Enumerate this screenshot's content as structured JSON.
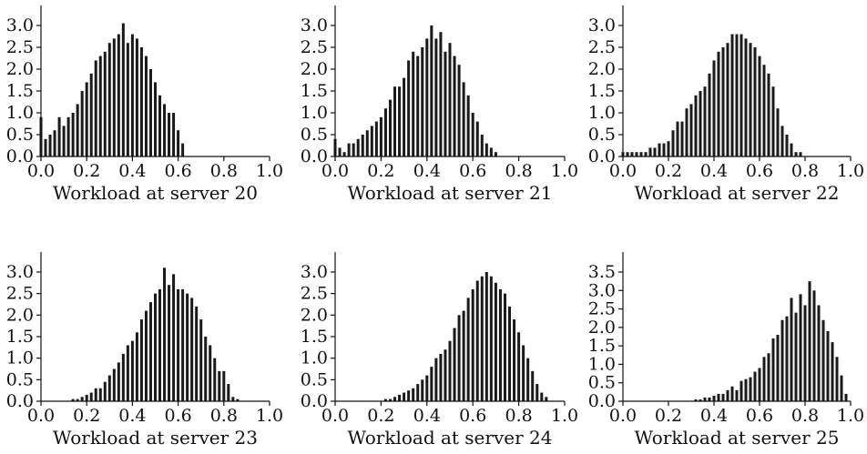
{
  "chart_data": [
    {
      "type": "bar",
      "xlabel": "Workload at server 20",
      "xlim": [
        0.0,
        1.0
      ],
      "ylim": [
        0.0,
        3.0
      ],
      "xticks": [
        "0.0",
        "0.2",
        "0.4",
        "0.6",
        "0.8",
        "1.0"
      ],
      "yticks": [
        "0.0",
        "0.5",
        "1.0",
        "1.5",
        "2.0",
        "2.5",
        "3.0"
      ],
      "x": [
        0.0,
        0.02,
        0.04,
        0.06,
        0.08,
        0.1,
        0.12,
        0.14,
        0.16,
        0.18,
        0.2,
        0.22,
        0.24,
        0.26,
        0.28,
        0.3,
        0.32,
        0.34,
        0.36,
        0.38,
        0.4,
        0.42,
        0.44,
        0.46,
        0.48,
        0.5,
        0.52,
        0.54,
        0.56,
        0.58,
        0.6,
        0.62
      ],
      "values": [
        0.9,
        0.4,
        0.5,
        0.6,
        0.9,
        0.7,
        0.9,
        1.0,
        1.2,
        1.5,
        1.7,
        1.9,
        2.2,
        2.3,
        2.4,
        2.6,
        2.7,
        2.8,
        3.05,
        2.6,
        2.8,
        2.7,
        2.5,
        2.3,
        2.0,
        1.7,
        1.4,
        1.2,
        1.0,
        1.0,
        0.6,
        0.3
      ]
    },
    {
      "type": "bar",
      "xlabel": "Workload at server 21",
      "xlim": [
        0.0,
        1.0
      ],
      "ylim": [
        0.0,
        3.0
      ],
      "xticks": [
        "0.0",
        "0.2",
        "0.4",
        "0.6",
        "0.8",
        "1.0"
      ],
      "yticks": [
        "0.0",
        "0.5",
        "1.0",
        "1.5",
        "2.0",
        "2.5",
        "3.0"
      ],
      "x": [
        0.0,
        0.02,
        0.04,
        0.06,
        0.08,
        0.1,
        0.12,
        0.14,
        0.16,
        0.18,
        0.2,
        0.22,
        0.24,
        0.26,
        0.28,
        0.3,
        0.32,
        0.34,
        0.36,
        0.38,
        0.4,
        0.42,
        0.44,
        0.46,
        0.48,
        0.5,
        0.52,
        0.54,
        0.56,
        0.58,
        0.6,
        0.62,
        0.64,
        0.66,
        0.68,
        0.7
      ],
      "values": [
        0.4,
        0.2,
        0.1,
        0.3,
        0.3,
        0.4,
        0.5,
        0.6,
        0.7,
        0.8,
        0.9,
        1.1,
        1.3,
        1.6,
        1.6,
        1.8,
        2.2,
        2.4,
        2.3,
        2.5,
        2.7,
        3.0,
        2.7,
        2.85,
        2.4,
        2.6,
        2.3,
        2.1,
        1.7,
        1.4,
        1.0,
        0.8,
        0.5,
        0.3,
        0.2,
        0.1
      ]
    },
    {
      "type": "bar",
      "xlabel": "Workload at server 22",
      "xlim": [
        0.0,
        1.0
      ],
      "ylim": [
        0.0,
        3.0
      ],
      "xticks": [
        "0.0",
        "0.2",
        "0.4",
        "0.6",
        "0.8",
        "1.0"
      ],
      "yticks": [
        "0.0",
        "0.5",
        "1.0",
        "1.5",
        "2.0",
        "2.5",
        "3.0"
      ],
      "x": [
        0.0,
        0.02,
        0.04,
        0.06,
        0.08,
        0.1,
        0.12,
        0.14,
        0.16,
        0.18,
        0.2,
        0.22,
        0.24,
        0.26,
        0.28,
        0.3,
        0.32,
        0.34,
        0.36,
        0.38,
        0.4,
        0.42,
        0.44,
        0.46,
        0.48,
        0.5,
        0.52,
        0.54,
        0.56,
        0.58,
        0.6,
        0.62,
        0.64,
        0.66,
        0.68,
        0.7,
        0.72,
        0.74,
        0.76,
        0.78
      ],
      "values": [
        0.1,
        0.1,
        0.1,
        0.1,
        0.1,
        0.1,
        0.2,
        0.2,
        0.3,
        0.3,
        0.35,
        0.6,
        0.8,
        0.8,
        1.1,
        1.2,
        1.4,
        1.5,
        1.6,
        1.9,
        2.2,
        2.4,
        2.5,
        2.6,
        2.8,
        2.8,
        2.8,
        2.7,
        2.6,
        2.5,
        2.3,
        2.1,
        1.9,
        1.6,
        1.1,
        0.7,
        0.5,
        0.3,
        0.1,
        0.1
      ]
    },
    {
      "type": "bar",
      "xlabel": "Workload at server 23",
      "xlim": [
        0.0,
        1.0
      ],
      "ylim": [
        0.0,
        3.0
      ],
      "xticks": [
        "0.0",
        "0.2",
        "0.4",
        "0.6",
        "0.8",
        "1.0"
      ],
      "yticks": [
        "0.0",
        "0.5",
        "1.0",
        "1.5",
        "2.0",
        "2.5",
        "3.0"
      ],
      "x": [
        0.14,
        0.16,
        0.18,
        0.2,
        0.22,
        0.24,
        0.26,
        0.28,
        0.3,
        0.32,
        0.34,
        0.36,
        0.38,
        0.4,
        0.42,
        0.44,
        0.46,
        0.48,
        0.5,
        0.52,
        0.54,
        0.56,
        0.58,
        0.6,
        0.62,
        0.64,
        0.66,
        0.68,
        0.7,
        0.72,
        0.74,
        0.76,
        0.78,
        0.8,
        0.82,
        0.84,
        0.86
      ],
      "values": [
        0.05,
        0.05,
        0.1,
        0.15,
        0.2,
        0.3,
        0.3,
        0.45,
        0.6,
        0.75,
        0.9,
        1.1,
        1.3,
        1.4,
        1.6,
        1.9,
        2.1,
        2.3,
        2.5,
        2.6,
        3.1,
        2.7,
        2.95,
        2.6,
        2.6,
        2.5,
        2.4,
        2.2,
        1.9,
        1.5,
        1.3,
        1.0,
        0.7,
        0.7,
        0.4,
        0.1,
        0.05
      ]
    },
    {
      "type": "bar",
      "xlabel": "Workload at server 24",
      "xlim": [
        0.0,
        1.0
      ],
      "ylim": [
        0.0,
        3.0
      ],
      "xticks": [
        "0.0",
        "0.2",
        "0.4",
        "0.6",
        "0.8",
        "1.0"
      ],
      "yticks": [
        "0.0",
        "0.5",
        "1.0",
        "1.5",
        "2.0",
        "2.5",
        "3.0"
      ],
      "x": [
        0.22,
        0.24,
        0.26,
        0.28,
        0.3,
        0.32,
        0.34,
        0.36,
        0.38,
        0.4,
        0.42,
        0.44,
        0.46,
        0.48,
        0.5,
        0.52,
        0.54,
        0.56,
        0.58,
        0.6,
        0.62,
        0.64,
        0.66,
        0.68,
        0.7,
        0.72,
        0.74,
        0.76,
        0.78,
        0.8,
        0.82,
        0.84,
        0.86,
        0.88,
        0.9,
        0.92
      ],
      "values": [
        0.05,
        0.05,
        0.1,
        0.15,
        0.2,
        0.25,
        0.3,
        0.4,
        0.5,
        0.6,
        0.8,
        1.0,
        1.1,
        1.2,
        1.4,
        1.7,
        2.0,
        2.1,
        2.4,
        2.6,
        2.8,
        2.9,
        3.0,
        2.9,
        2.75,
        2.6,
        2.5,
        2.2,
        1.9,
        1.6,
        1.3,
        1.0,
        0.7,
        0.4,
        0.2,
        0.1
      ]
    },
    {
      "type": "bar",
      "xlabel": "Workload at server 25",
      "xlim": [
        0.0,
        1.0
      ],
      "ylim": [
        0.0,
        3.5
      ],
      "xticks": [
        "0.0",
        "0.2",
        "0.4",
        "0.6",
        "0.8",
        "1.0"
      ],
      "yticks": [
        "0.0",
        "0.5",
        "1.0",
        "1.5",
        "2.0",
        "2.5",
        "3.0",
        "3.5"
      ],
      "x": [
        0.32,
        0.34,
        0.36,
        0.38,
        0.4,
        0.42,
        0.44,
        0.46,
        0.48,
        0.5,
        0.52,
        0.54,
        0.56,
        0.58,
        0.6,
        0.62,
        0.64,
        0.66,
        0.68,
        0.7,
        0.72,
        0.74,
        0.76,
        0.78,
        0.8,
        0.82,
        0.84,
        0.86,
        0.88,
        0.9,
        0.92,
        0.94,
        0.96,
        0.98
      ],
      "values": [
        0.05,
        0.05,
        0.1,
        0.1,
        0.15,
        0.2,
        0.2,
        0.3,
        0.4,
        0.3,
        0.55,
        0.6,
        0.65,
        0.8,
        0.9,
        1.2,
        1.3,
        1.7,
        1.8,
        2.2,
        2.3,
        2.8,
        2.4,
        2.9,
        2.6,
        3.25,
        3.0,
        2.6,
        2.2,
        1.9,
        1.6,
        1.2,
        0.7,
        0.2
      ]
    }
  ]
}
